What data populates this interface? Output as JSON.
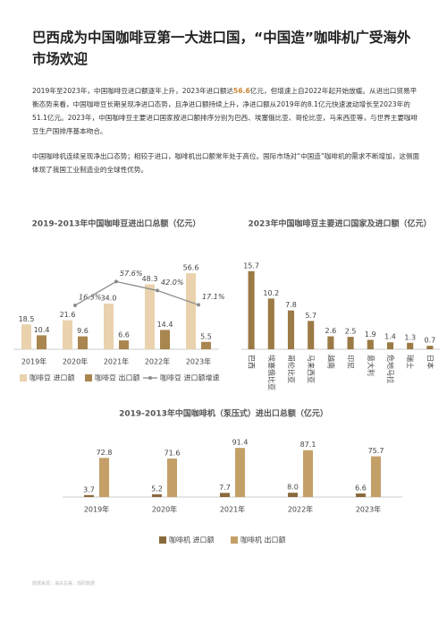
{
  "title": "巴西成为中国咖啡豆第一大进口国，“中国造”咖啡机广受海外市场欢迎",
  "paragraphs": [
    [
      "2019年至2023年，中国咖啡豆进口额逐年上升，2023年进口额达",
      "56.6",
      "亿元，但增速上自2022年起开始放缓。从进出口贸易平衡态势来看，中国咖啡豆长期呈现净进口态势，且净进口额持续上升，净进口额从2019年的8.1亿元快速波动增长至2023年的51.1亿元。2023年，中国咖啡豆主要进口国家按进口额排序分别为巴西、埃塞俄比亚、哥伦比亚，马来西亚等，与世界主要咖啡豆生产国排序基本吻合。"
    ],
    [
      "中国咖啡机连续呈现净出口态势；相较于进口，咖啡机出口额常年处于高位。国际市场对“中国造”咖啡机的需求不断增加，这侧面体现了我国工业制造业的全球性优势。"
    ]
  ],
  "chart_data": [
    {
      "type": "bar",
      "title": "2019-2013年中国咖啡豆进出口总额（亿元）",
      "categories": [
        "2019年",
        "2020年",
        "2021年",
        "2022年",
        "2023年"
      ],
      "ylim": [
        0,
        60
      ],
      "y2lim": [
        -60,
        80
      ],
      "series": [
        {
          "name": "咖啡豆 进口额",
          "color": "#e9d2ad",
          "values": [
            18.5,
            21.6,
            34.0,
            48.3,
            56.6
          ],
          "value_labels": [
            "18.5",
            "21.6",
            "34.0",
            "48.3",
            "56.6"
          ]
        },
        {
          "name": "咖啡豆 出口额",
          "color": "#a9864f",
          "values": [
            10.4,
            9.6,
            6.6,
            14.4,
            5.5
          ]
        },
        {
          "name": "咖啡豆 进口额增速",
          "type": "line",
          "axis": "y2",
          "color": "#8c8c8c",
          "values": [
            null,
            16.3,
            57.6,
            42.0,
            17.1
          ],
          "value_labels": [
            null,
            "16.3%",
            "57.6%",
            "42.0%",
            "17.1%"
          ]
        }
      ]
    },
    {
      "type": "bar",
      "title": "2023年中国咖啡豆主要进口国家及进口额（亿元）",
      "categories": [
        "巴西",
        "埃塞俄比亚",
        "哥伦比亚",
        "马来西亚",
        "越南",
        "印尼",
        "意大利",
        "危地马拉",
        "瑞士",
        "日本"
      ],
      "ylim": [
        0,
        18
      ],
      "series": [
        {
          "color": "#9c7a45",
          "values": [
            15.7,
            10.2,
            7.8,
            5.7,
            2.6,
            2.5,
            1.9,
            1.4,
            1.3,
            0.7
          ]
        }
      ]
    },
    {
      "type": "bar",
      "title": "2019-2013年中国咖啡机（泵压式）进出口总额（亿元）",
      "categories": [
        "2019年",
        "2020年",
        "2021年",
        "2022年",
        "2023年"
      ],
      "ylim": [
        0,
        100
      ],
      "series": [
        {
          "name": "咖啡机 进口额",
          "color": "#8a6a3c",
          "values": [
            3.7,
            5.2,
            7.7,
            8.0,
            6.6
          ],
          "value_labels": [
            "3.7",
            "5.2",
            "7.7",
            "8.0",
            "6.6"
          ]
        },
        {
          "name": "咖啡机 出口额",
          "color": "#c4a068",
          "values": [
            72.8,
            71.6,
            91.4,
            87.1,
            75.7
          ]
        }
      ]
    }
  ],
  "source": "数据来源：海关总署，观研数据"
}
